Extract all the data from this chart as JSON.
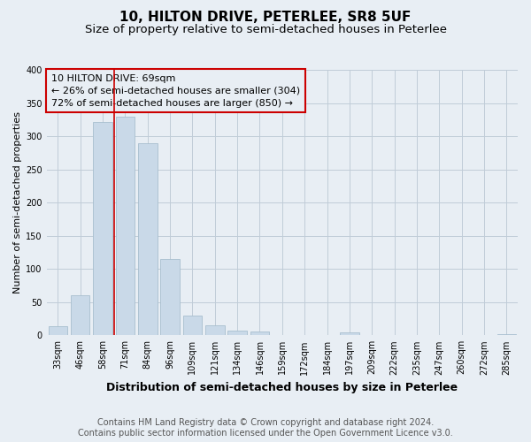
{
  "title": "10, HILTON DRIVE, PETERLEE, SR8 5UF",
  "subtitle": "Size of property relative to semi-detached houses in Peterlee",
  "xlabel": "Distribution of semi-detached houses by size in Peterlee",
  "ylabel": "Number of semi-detached properties",
  "bar_labels": [
    "33sqm",
    "46sqm",
    "58sqm",
    "71sqm",
    "84sqm",
    "96sqm",
    "109sqm",
    "121sqm",
    "134sqm",
    "146sqm",
    "159sqm",
    "172sqm",
    "184sqm",
    "197sqm",
    "209sqm",
    "222sqm",
    "235sqm",
    "247sqm",
    "260sqm",
    "272sqm",
    "285sqm"
  ],
  "bar_values": [
    14,
    60,
    322,
    330,
    290,
    115,
    30,
    15,
    7,
    6,
    0,
    0,
    0,
    4,
    0,
    0,
    0,
    0,
    0,
    0,
    2
  ],
  "bar_color": "#c9d9e8",
  "bar_edge_color": "#a8bece",
  "grid_color": "#c0ccd8",
  "bg_color": "#e8eef4",
  "annotation_line1": "10 HILTON DRIVE: 69sqm",
  "annotation_line2": "← 26% of semi-detached houses are smaller (304)",
  "annotation_line3": "72% of semi-detached houses are larger (850) →",
  "red_line_color": "#cc0000",
  "annotation_box_edge": "#cc0000",
  "red_line_x": 2.5,
  "ylim": [
    0,
    400
  ],
  "yticks": [
    0,
    50,
    100,
    150,
    200,
    250,
    300,
    350,
    400
  ],
  "title_fontsize": 11,
  "subtitle_fontsize": 9.5,
  "xlabel_fontsize": 9,
  "ylabel_fontsize": 8,
  "tick_fontsize": 7,
  "footer_fontsize": 7,
  "annotation_fontsize": 8,
  "footer_line1": "Contains HM Land Registry data © Crown copyright and database right 2024.",
  "footer_line2": "Contains public sector information licensed under the Open Government Licence v3.0."
}
